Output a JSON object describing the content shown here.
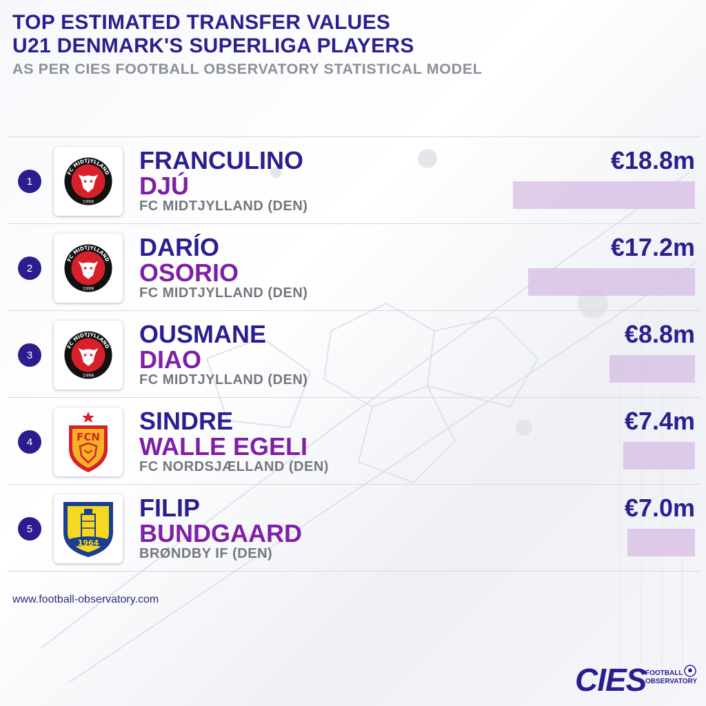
{
  "header": {
    "line1": "TOP ESTIMATED TRANSFER VALUES",
    "line2": "U21 DENMARK'S SUPERLIGA PLAYERS",
    "line3": "AS PER CIES FOOTBALL OBSERVATORY STATISTICAL MODEL"
  },
  "chart_data": {
    "type": "bar",
    "title": "TOP ESTIMATED TRANSFER VALUES U21 DENMARK'S SUPERLIGA PLAYERS",
    "subtitle": "AS PER CIES FOOTBALL OBSERVATORY STATISTICAL MODEL",
    "unit": "€m",
    "max_value": 18.8,
    "players": [
      {
        "rank": "1",
        "first": "FRANCULINO",
        "last": "DJÚ",
        "club": "FC MIDTJYLLAND (DEN)",
        "value_label": "€18.8m",
        "value": 18.8,
        "logo": "midtjylland-crest-icon"
      },
      {
        "rank": "2",
        "first": "DARÍO",
        "last": "OSORIO",
        "club": "FC MIDTJYLLAND (DEN)",
        "value_label": "€17.2m",
        "value": 17.2,
        "logo": "midtjylland-crest-icon"
      },
      {
        "rank": "3",
        "first": "OUSMANE",
        "last": "DIAO",
        "club": "FC MIDTJYLLAND (DEN)",
        "value_label": "€8.8m",
        "value": 8.8,
        "logo": "midtjylland-crest-icon"
      },
      {
        "rank": "4",
        "first": "SINDRE",
        "last": "WALLE EGELI",
        "club": "FC NORDSJÆLLAND (DEN)",
        "value_label": "€7.4m",
        "value": 7.4,
        "logo": "nordsjaelland-crest-icon"
      },
      {
        "rank": "5",
        "first": "FILIP",
        "last": "BUNDGAARD",
        "club": "BRØNDBY IF (DEN)",
        "value_label": "€7.0m",
        "value": 7.0,
        "logo": "brondby-crest-icon"
      }
    ]
  },
  "logos": {
    "midtjylland_text": "FC MIDTJYLLAND",
    "midtjylland_year": "1999",
    "nordsjaelland_text": "FCN",
    "brondby_year": "1964"
  },
  "footer": {
    "url": "www.football-observatory.com",
    "brand": "CIES",
    "brand_sub1": "FOOTBALL",
    "brand_sub2": "OBSERVATORY"
  },
  "colors": {
    "title": "#2a1f8f",
    "surname": "#7e1fa6",
    "club": "#73767f",
    "bar": "#d6bae2",
    "rank_badge": "#2b1d8f"
  }
}
